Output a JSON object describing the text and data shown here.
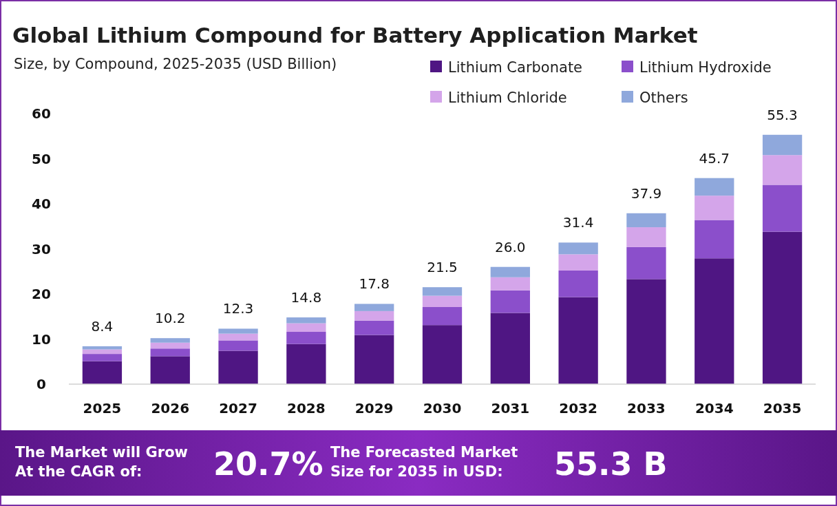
{
  "chart_data": {
    "type": "bar",
    "title": "Global Lithium Compound for Battery Application Market",
    "subtitle": "Size, by Compound, 2025-2035 (USD Billion)",
    "categories": [
      "2025",
      "2026",
      "2027",
      "2028",
      "2029",
      "2030",
      "2031",
      "2032",
      "2033",
      "2034",
      "2035"
    ],
    "stacked": true,
    "series": [
      {
        "name": "Lithium Carbonate",
        "color": "#4f1683",
        "values": [
          5.1,
          6.2,
          7.4,
          8.9,
          10.9,
          13.1,
          15.8,
          19.3,
          23.3,
          27.9,
          33.8
        ]
      },
      {
        "name": "Lithium Hydroxide",
        "color": "#8b4fcb",
        "values": [
          1.6,
          1.7,
          2.3,
          2.7,
          3.2,
          4.0,
          5.0,
          5.9,
          7.1,
          8.5,
          10.4
        ]
      },
      {
        "name": "Lithium Chloride",
        "color": "#d4a5ea",
        "values": [
          1.0,
          1.3,
          1.5,
          1.9,
          2.1,
          2.5,
          2.9,
          3.6,
          4.4,
          5.4,
          6.6
        ]
      },
      {
        "name": "Others",
        "color": "#8fa8dc",
        "values": [
          0.7,
          1.0,
          1.1,
          1.3,
          1.6,
          1.9,
          2.3,
          2.6,
          3.1,
          3.9,
          4.5
        ]
      }
    ],
    "totals": [
      "8.4",
      "10.2",
      "12.3",
      "14.8",
      "17.8",
      "21.5",
      "26.0",
      "31.4",
      "37.9",
      "45.7",
      "55.3"
    ],
    "ylim": [
      0,
      60
    ],
    "yticks": [
      0,
      10,
      20,
      30,
      40,
      50,
      60
    ],
    "grid": false,
    "legend": "top right",
    "annotations": [
      "The Market will Grow At the CAGR of:",
      "20.7%",
      "The Forecasted Market Size for 2035 in USD:",
      "55.3 B"
    ]
  }
}
